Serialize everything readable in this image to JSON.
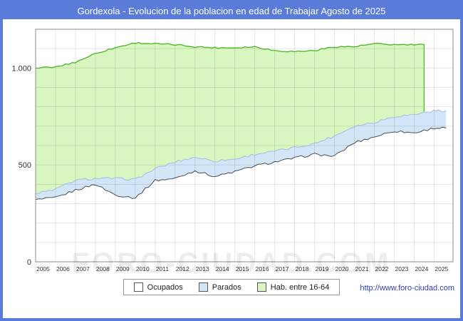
{
  "title": "Gordexola - Evolucion de la poblacion en edad de Trabajar Agosto de 2025",
  "watermark": "FORO-CIUDAD.COM",
  "footer_url": "http://www.foro-ciudad.com",
  "legend": [
    "Ocupados",
    "Parados",
    "Hab. entre 16-64"
  ],
  "colors": {
    "titlebar_bg": "#5a7bd8",
    "frame_border": "#5a7bd8",
    "green_fill": "#d9f6c0",
    "green_line": "#55b82e",
    "blue_fill": "#d3e6f8",
    "blue_line": "#a9c6e4",
    "ocupados_fill": "#ffffff",
    "ocupados_line": "#4d4d4d",
    "grid": "rgba(0,0,0,0.10)",
    "plot_border": "#8c8c8c",
    "axis_text": "#333333",
    "footer_text": "#2a3fb8"
  },
  "chart_data": {
    "type": "area",
    "title": "Gordexola - Evolucion de la poblacion en edad de Trabajar Agosto de 2025",
    "x_ticks": [
      2005,
      2006,
      2007,
      2008,
      2009,
      2010,
      2011,
      2012,
      2013,
      2014,
      2015,
      2016,
      2017,
      2018,
      2019,
      2020,
      2021,
      2022,
      2023,
      2024,
      2025
    ],
    "y_ticks": [
      0,
      500,
      1000
    ],
    "y_tick_labels": [
      "0",
      "500",
      "1.000"
    ],
    "ylim": [
      0,
      1200
    ],
    "xlim": [
      2005,
      2025.95
    ],
    "grid": true,
    "legend_position": "bottom",
    "series": [
      {
        "name": "Ocupados",
        "stacking": "base",
        "x_start": 2005,
        "x_step": 1,
        "x_end": 2025.6,
        "values": [
          320,
          330,
          370,
          400,
          345,
          330,
          420,
          430,
          470,
          440,
          465,
          495,
          515,
          535,
          555,
          545,
          615,
          645,
          675,
          665,
          690
        ]
      },
      {
        "name": "Parados",
        "stacking": "stacked on Ocupados",
        "x_start": 2005,
        "x_step": 1,
        "x_end": 2025.6,
        "values": [
          30,
          45,
          50,
          30,
          85,
          95,
          60,
          85,
          70,
          80,
          65,
          60,
          55,
          55,
          55,
          105,
          85,
          75,
          75,
          95,
          90
        ]
      },
      {
        "name": "Hab. entre 16-64",
        "stacking": "absolute total (top green area)",
        "x_start": 2005,
        "x_step": 1,
        "x_end": 2024.5,
        "values": [
          1000,
          1005,
          1030,
          1075,
          1105,
          1130,
          1125,
          1120,
          1110,
          1105,
          1105,
          1110,
          1090,
          1085,
          1090,
          1110,
          1110,
          1125,
          1120,
          1120
        ]
      }
    ]
  }
}
